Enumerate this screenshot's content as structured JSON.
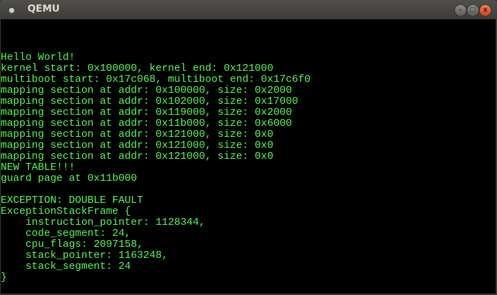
{
  "window": {
    "title": "QEMU",
    "minimize_label": "–",
    "maximize_label": "□",
    "close_label": "x"
  },
  "console": {
    "lines": [
      "",
      "",
      "",
      "Hello World!",
      "kernel start: 0x100000, kernel end: 0x121000",
      "multiboot start: 0x17c068, multiboot end: 0x17c6f0",
      "mapping section at addr: 0x100000, size: 0x2000",
      "mapping section at addr: 0x102000, size: 0x17000",
      "mapping section at addr: 0x119000, size: 0x2000",
      "mapping section at addr: 0x11b000, size: 0x6000",
      "mapping section at addr: 0x121000, size: 0x0",
      "mapping section at addr: 0x121000, size: 0x0",
      "mapping section at addr: 0x121000, size: 0x0",
      "NEW TABLE!!!",
      "guard page at 0x11b000",
      "",
      "EXCEPTION: DOUBLE FAULT",
      "ExceptionStackFrame {",
      "    instruction_pointer: 1128344,",
      "    code_segment: 24,",
      "    cpu_flags: 2097158,",
      "    stack_pointer: 1163248,",
      "    stack_segment: 24",
      "}"
    ],
    "text_color": "#54fc54",
    "background": "#000000"
  }
}
